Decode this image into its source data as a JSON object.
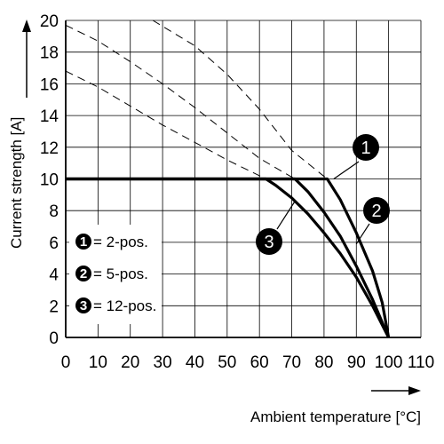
{
  "chart_data": {
    "type": "line",
    "title": "",
    "xlabel": "Ambient temperature [°C]",
    "ylabel": "Current strength [A]",
    "xlim": [
      0,
      110
    ],
    "ylim": [
      0,
      20
    ],
    "x_ticks": [
      "0",
      "10",
      "20",
      "30",
      "40",
      "50",
      "60",
      "70",
      "80",
      "90",
      "100",
      "110"
    ],
    "y_ticks": [
      "0",
      "2",
      "4",
      "6",
      "8",
      "10",
      "12",
      "14",
      "16",
      "18",
      "20"
    ],
    "grid": true,
    "legend_position": "bottom-left",
    "series": [
      {
        "marker": "1",
        "name": "= 2-pos.",
        "solid": [
          [
            0,
            10
          ],
          [
            81,
            10
          ],
          [
            85,
            8.7
          ],
          [
            90,
            6.6
          ],
          [
            95,
            4.2
          ],
          [
            98,
            2.2
          ],
          [
            100,
            0
          ]
        ],
        "dashed": [
          [
            27,
            20
          ],
          [
            40,
            18.4
          ],
          [
            50,
            16.6
          ],
          [
            60,
            14.4
          ],
          [
            70,
            11.8
          ],
          [
            81,
            10
          ]
        ]
      },
      {
        "marker": "2",
        "name": "= 5-pos.",
        "solid": [
          [
            0,
            10
          ],
          [
            71,
            10
          ],
          [
            75,
            9.2
          ],
          [
            80,
            7.9
          ],
          [
            85,
            6.4
          ],
          [
            90,
            4.5
          ],
          [
            95,
            2.4
          ],
          [
            100,
            0
          ]
        ],
        "dashed": [
          [
            0,
            19.7
          ],
          [
            10,
            18.7
          ],
          [
            20,
            17.4
          ],
          [
            30,
            16.0
          ],
          [
            40,
            14.5
          ],
          [
            50,
            12.9
          ],
          [
            60,
            11.3
          ],
          [
            71,
            10
          ]
        ]
      },
      {
        "marker": "3",
        "name": "= 12-pos.",
        "solid": [
          [
            0,
            10
          ],
          [
            62,
            10
          ],
          [
            65,
            9.6
          ],
          [
            70,
            8.8
          ],
          [
            75,
            7.8
          ],
          [
            80,
            6.6
          ],
          [
            85,
            5.3
          ],
          [
            90,
            3.8
          ],
          [
            95,
            2.0
          ],
          [
            100,
            0
          ]
        ],
        "dashed": [
          [
            0,
            16.8
          ],
          [
            10,
            15.8
          ],
          [
            20,
            14.6
          ],
          [
            30,
            13.4
          ],
          [
            40,
            12.3
          ],
          [
            50,
            11.2
          ],
          [
            62,
            10
          ]
        ]
      }
    ]
  }
}
